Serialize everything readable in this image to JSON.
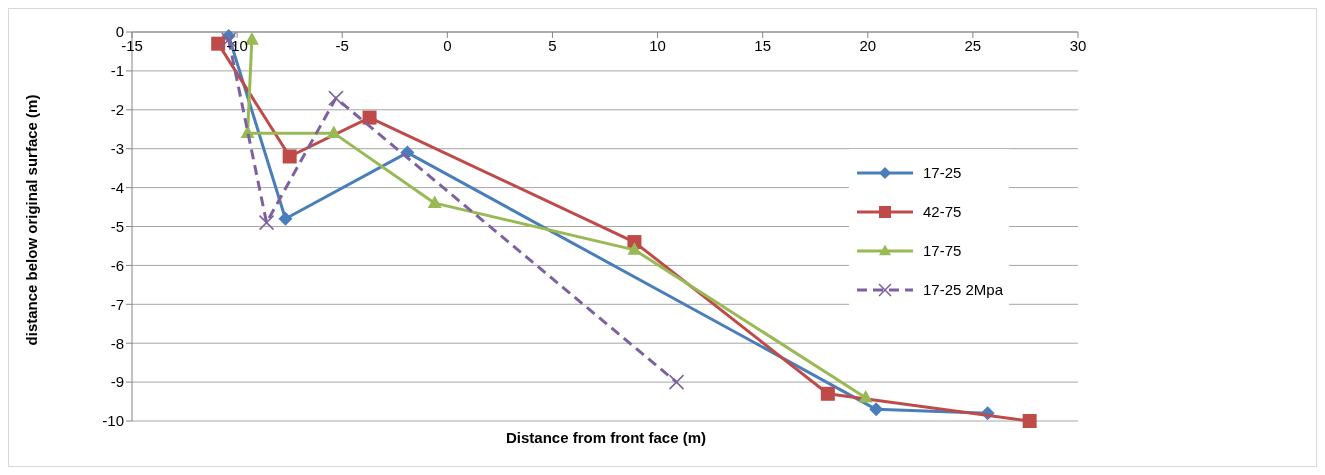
{
  "chart_data": {
    "type": "line",
    "xlabel": "Distance from front face (m)",
    "ylabel": "distance below original surface (m)",
    "xlim": [
      -15,
      30
    ],
    "xticks": [
      -15,
      -10,
      -5,
      0,
      5,
      10,
      15,
      20,
      25,
      30
    ],
    "ylim": [
      -10,
      0
    ],
    "yticks": [
      -10,
      -9,
      -8,
      -7,
      -6,
      -5,
      -4,
      -3,
      -2,
      -1,
      0
    ],
    "grid": "y",
    "legend": "right",
    "series": [
      {
        "name": "17-25",
        "color": "#4a7ebb",
        "marker": "diamond",
        "line_style": "solid",
        "x": [
          -10.4,
          -7.7,
          -1.9,
          20.4,
          25.7
        ],
        "values": [
          -0.1,
          -4.8,
          -3.1,
          -9.7,
          -9.8
        ]
      },
      {
        "name": "42-75",
        "color": "#be4b48",
        "marker": "square",
        "line_style": "solid",
        "x": [
          -10.9,
          -7.5,
          -3.7,
          8.9,
          18.1,
          27.7
        ],
        "values": [
          -0.3,
          -3.2,
          -2.2,
          -5.4,
          -9.3,
          -10
        ]
      },
      {
        "name": "17-75",
        "color": "#98b954",
        "marker": "triangle",
        "line_style": "solid",
        "x": [
          -9.3,
          -9.5,
          -5.4,
          -0.6,
          8.9,
          19.9
        ],
        "values": [
          -0.2,
          -2.6,
          -2.6,
          -4.4,
          -5.6,
          -9.4
        ]
      },
      {
        "name": "17-25 2Mpa",
        "color": "#7d60a0",
        "marker": "cross",
        "line_style": "dashed",
        "x": [
          -10.4,
          -8.6,
          -5.3,
          10.9
        ],
        "values": [
          -0.2,
          -4.9,
          -1.7,
          -9.0
        ]
      }
    ]
  }
}
